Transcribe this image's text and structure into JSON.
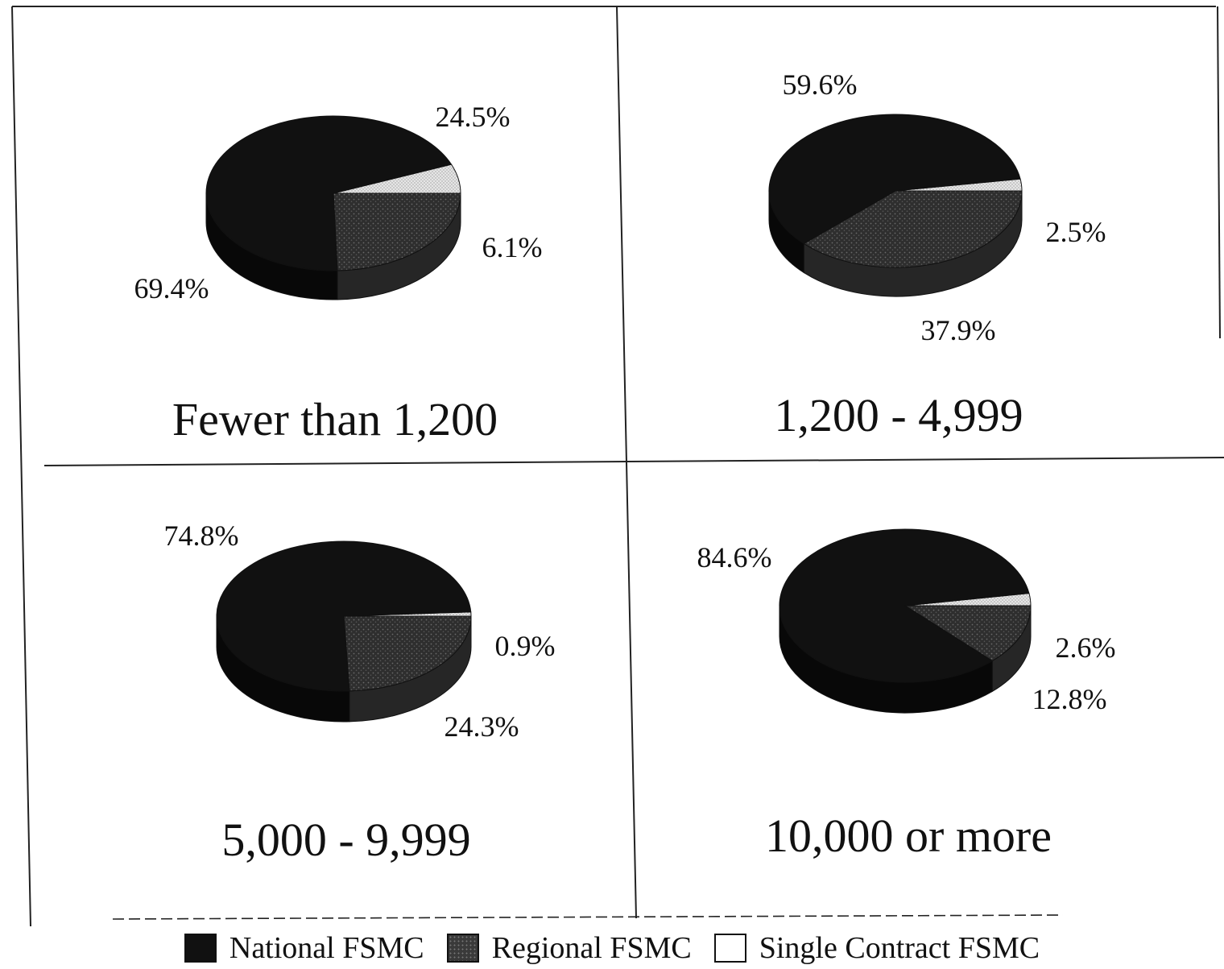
{
  "chart_data": {
    "type": "pie",
    "series_names": [
      "National FSMC",
      "Regional FSMC",
      "Single Contract FSMC"
    ],
    "colors": {
      "National FSMC": "#111111",
      "Regional FSMC": "#3a3a3a",
      "Single Contract FSMC": "#ffffff"
    },
    "panels": [
      {
        "category": "Fewer than 1,200",
        "slices": [
          {
            "series": "National FSMC",
            "value": 69.4,
            "label": "69.4%"
          },
          {
            "series": "Regional FSMC",
            "value": 24.5,
            "label": "24.5%"
          },
          {
            "series": "Single Contract FSMC",
            "value": 6.1,
            "label": "6.1%"
          }
        ]
      },
      {
        "category": "1,200 - 4,999",
        "slices": [
          {
            "series": "National FSMC",
            "value": 59.6,
            "label": "59.6%"
          },
          {
            "series": "Regional FSMC",
            "value": 37.9,
            "label": "37.9%"
          },
          {
            "series": "Single Contract FSMC",
            "value": 2.5,
            "label": "2.5%"
          }
        ]
      },
      {
        "category": "5,000 - 9,999",
        "slices": [
          {
            "series": "National FSMC",
            "value": 74.8,
            "label": "74.8%"
          },
          {
            "series": "Regional FSMC",
            "value": 24.3,
            "label": "24.3%"
          },
          {
            "series": "Single Contract FSMC",
            "value": 0.9,
            "label": "0.9%"
          }
        ]
      },
      {
        "category": "10,000 or more",
        "slices": [
          {
            "series": "National FSMC",
            "value": 84.6,
            "label": "84.6%"
          },
          {
            "series": "Regional FSMC",
            "value": 12.8,
            "label": "12.8%"
          },
          {
            "series": "Single Contract FSMC",
            "value": 2.6,
            "label": "2.6%"
          }
        ]
      }
    ],
    "legend": [
      "National FSMC",
      "Regional FSMC",
      "Single Contract FSMC"
    ],
    "legend_position": "bottom"
  }
}
